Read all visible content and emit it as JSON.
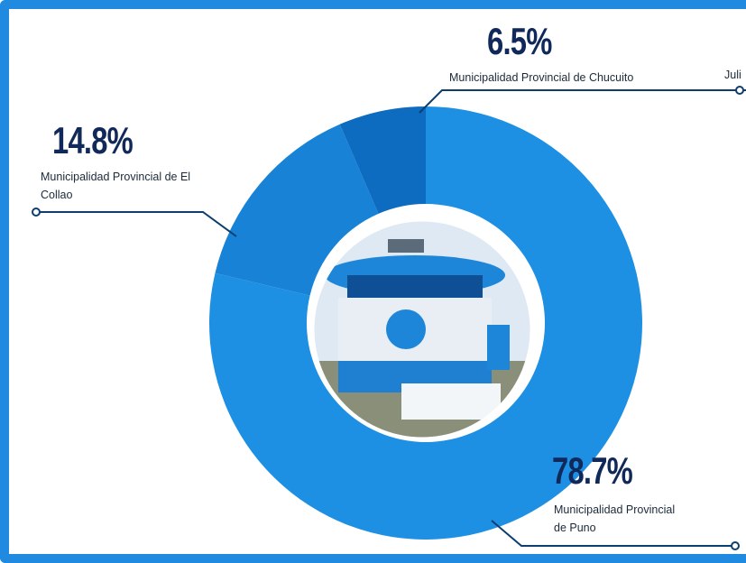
{
  "chart_data": {
    "type": "pie",
    "donut": true,
    "categories": [
      "Municipalidad Provincial de Puno",
      "Municipalidad Provincial de El Collao",
      "Municipalidad Provincial de Chucuito"
    ],
    "values": [
      78.7,
      14.8,
      6.5
    ],
    "value_labels": [
      "78.7%",
      "14.8%",
      "6.5%"
    ],
    "colors": [
      "#1d90e4",
      "#1883d6",
      "#0d6bc0"
    ],
    "annotation": "Juli"
  }
}
